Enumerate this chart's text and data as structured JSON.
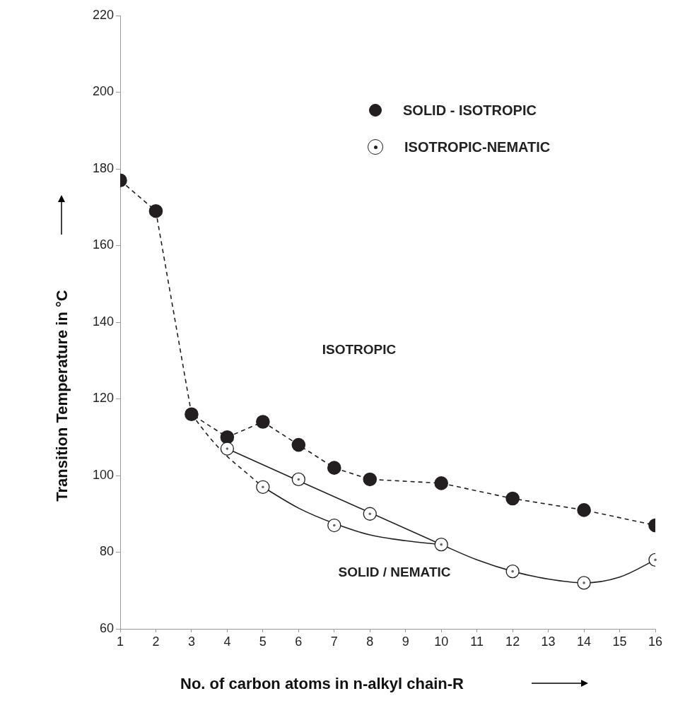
{
  "chart_data": {
    "type": "line",
    "ylabel": "Transition Temperature in °C",
    "xlabel": "No. of carbon atoms in n-alkyl chain-R",
    "xlim": [
      1,
      16
    ],
    "xticks": [
      1,
      2,
      3,
      4,
      5,
      6,
      7,
      8,
      9,
      10,
      11,
      12,
      13,
      14,
      15,
      16
    ],
    "ylim": [
      60,
      220
    ],
    "yticks": [
      60,
      80,
      100,
      120,
      140,
      160,
      180,
      200,
      220
    ],
    "grid": false,
    "legend": "top right",
    "marker": "circle",
    "series": [
      {
        "name": "SOLID - ISOTROPIC",
        "line_style": "dashed",
        "color": "#231f20",
        "x": [
          1,
          2,
          3,
          4,
          5,
          6,
          7,
          8,
          10,
          12,
          14,
          16
        ],
        "values": [
          177,
          169,
          116,
          110,
          114,
          108,
          102,
          99,
          98,
          94,
          91,
          87
        ]
      },
      {
        "name": "ISOTROPIC-NEMATIC",
        "type": "scatter",
        "color": "#231f20",
        "x": [
          4,
          5,
          6,
          7,
          8,
          10,
          12,
          14,
          16
        ],
        "values": [
          107,
          97,
          99,
          87,
          90,
          82,
          75,
          72,
          78
        ]
      },
      {
        "type": "line",
        "marker": "none",
        "line_style": "dashed",
        "color": "#231f20",
        "x": [
          3,
          3.5,
          4,
          4.5,
          5
        ],
        "values": [
          116,
          110,
          105,
          101,
          97
        ]
      },
      {
        "type": "line",
        "marker": "none",
        "line_style": "solid",
        "color": "#231f20",
        "x": [
          5,
          6,
          7,
          8,
          9,
          10
        ],
        "values": [
          97,
          91.5,
          87.5,
          84.5,
          83,
          82
        ]
      },
      {
        "type": "line",
        "marker": "none",
        "line_style": "solid",
        "color": "#231f20",
        "x": [
          4,
          10,
          11,
          12,
          13,
          14,
          15,
          16
        ],
        "values": [
          107,
          82,
          78,
          75,
          73,
          72,
          73.5,
          78
        ]
      }
    ],
    "annotations": [
      "ISOTROPIC",
      "SOLID  /  NEMATIC"
    ]
  }
}
